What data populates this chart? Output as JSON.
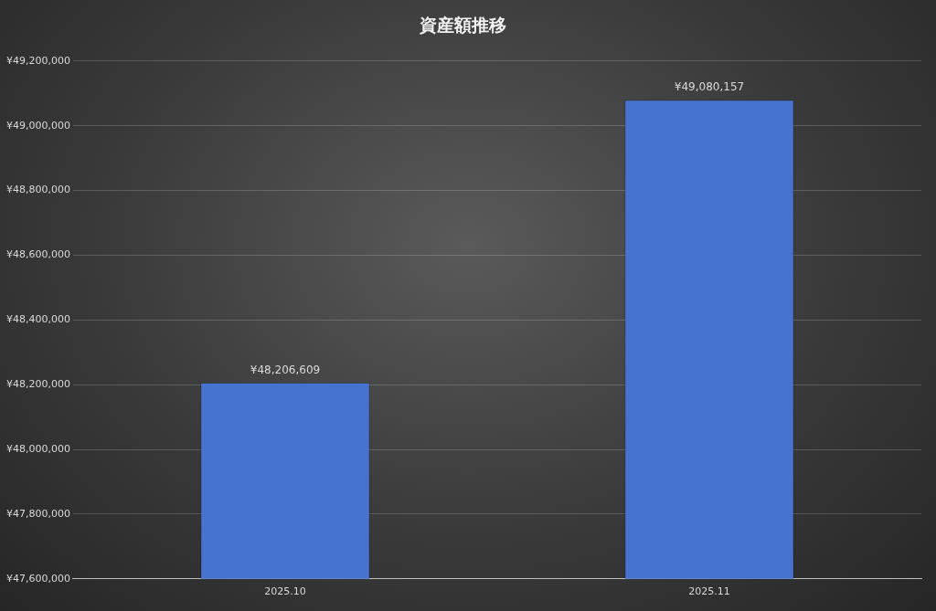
{
  "chart_data": {
    "type": "bar",
    "title": "資産額推移",
    "categories": [
      "2025.10",
      "2025.11"
    ],
    "values": [
      48206609,
      49080157
    ],
    "value_labels": [
      "¥48,206,609",
      "¥49,080,157"
    ],
    "color": "#4673cf",
    "ylim": [
      47600000,
      49200000
    ],
    "yticks": [
      {
        "value": 47600000,
        "label": "¥47,600,000"
      },
      {
        "value": 47800000,
        "label": "¥47,800,000"
      },
      {
        "value": 48000000,
        "label": "¥48,000,000"
      },
      {
        "value": 48200000,
        "label": "¥48,200,000"
      },
      {
        "value": 48400000,
        "label": "¥48,400,000"
      },
      {
        "value": 48600000,
        "label": "¥48,600,000"
      },
      {
        "value": 48800000,
        "label": "¥48,800,000"
      },
      {
        "value": 49000000,
        "label": "¥49,000,000"
      },
      {
        "value": 49200000,
        "label": "¥49,200,000"
      }
    ],
    "grid": "y",
    "legend": false
  }
}
